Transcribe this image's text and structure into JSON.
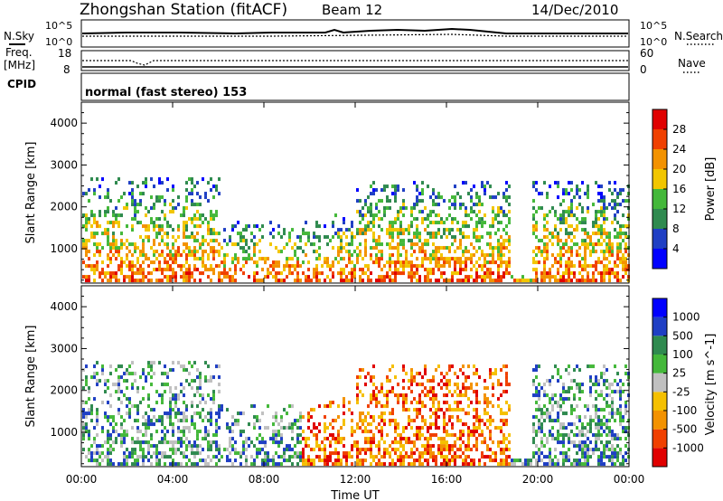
{
  "header": {
    "title": "Zhongshan Station (fitACF)",
    "beam": "Beam 12",
    "date": "14/Dec/2010",
    "cpid": "CPID",
    "mode": "normal (fast stereo) 153"
  },
  "noise_panel": {
    "left_label": "N.Sky",
    "right_label": "N.Search",
    "left_ticks": [
      "10^5",
      "10^0"
    ],
    "right_ticks": [
      "10^5",
      "10^0"
    ]
  },
  "freq_panel": {
    "left_label_top": "Freq.",
    "left_label_unit": "[MHz]",
    "right_label": "Nave",
    "left_ticks": [
      "18",
      "8"
    ],
    "right_ticks": [
      "60",
      "0"
    ]
  },
  "colors": {
    "power": [
      "#0000ff",
      "#1f3fc4",
      "#2f8a4f",
      "#44b83a",
      "#f2c600",
      "#f39200",
      "#f04000",
      "#e00000"
    ],
    "velocity": [
      "#e00000",
      "#f04000",
      "#f39200",
      "#f5c000",
      "#c0c0c0",
      "#44b83a",
      "#2f8a4f",
      "#1f3fc4",
      "#0000ff"
    ]
  },
  "chart_data": [
    {
      "type": "heatmap",
      "panel": "power",
      "ylabel": "Slant Range [km]",
      "yticks": [
        1000,
        2000,
        3000,
        4000
      ],
      "ylim": [
        180,
        4500
      ],
      "colorbar_label": "Power [dB]",
      "colorbar_ticks": [
        "4",
        "8",
        "12",
        "16",
        "20",
        "24",
        "28"
      ],
      "grid": false
    },
    {
      "type": "heatmap",
      "panel": "velocity",
      "ylabel": "Slant Range [km]",
      "yticks": [
        1000,
        2000,
        3000,
        4000
      ],
      "ylim": [
        180,
        4500
      ],
      "colorbar_label": "Velocity [m s^-1]",
      "colorbar_ticks": [
        "-1000",
        "-500",
        "-100",
        "-25",
        "25",
        "100",
        "500",
        "1000"
      ],
      "grid": false
    }
  ],
  "time_axis": {
    "label": "Time UT",
    "ticks": [
      "00:00",
      "04:00",
      "08:00",
      "12:00",
      "16:00",
      "20:00",
      "00:00"
    ]
  }
}
